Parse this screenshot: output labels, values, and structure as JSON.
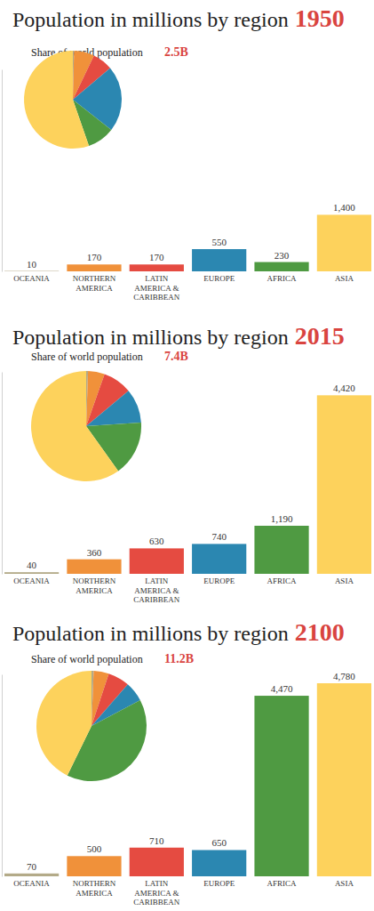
{
  "chart_data": [
    {
      "type": "bar",
      "title": "Population in millions by region",
      "subtitle": "1950",
      "categories": [
        "OCEANIA",
        "NORTHERN\nAMERICA",
        "LATIN\nAMERICA &\nCARIBBEAN",
        "EUROPE",
        "AFRICA",
        "ASIA"
      ],
      "values": [
        10,
        170,
        170,
        550,
        230,
        1400
      ],
      "value_labels": [
        "10",
        "170",
        "170",
        "550",
        "230",
        "1,400"
      ],
      "colors": [
        "#b3aa88",
        "#f0913a",
        "#e54b41",
        "#2b87b1",
        "#4f9a42",
        "#fdd25c"
      ],
      "ylim": [
        0,
        5000
      ],
      "yticks": [
        0
      ],
      "tick_labels": false,
      "data_labels": true
    },
    {
      "type": "pie",
      "title": "Share of world population",
      "annotations": [
        "2.5B"
      ],
      "values": [
        10,
        170,
        170,
        550,
        230,
        1400
      ],
      "colors": [
        "#b3aa88",
        "#f0913a",
        "#e54b41",
        "#2b87b1",
        "#4f9a42",
        "#fdd25c"
      ]
    },
    {
      "type": "bar",
      "title": "Population in millions by region",
      "subtitle": "2015",
      "categories": [
        "OCEANIA",
        "NORTHERN\nAMERICA",
        "LATIN\nAMERICA &\nCARIBBEAN",
        "EUROPE",
        "AFRICA",
        "ASIA"
      ],
      "values": [
        40,
        360,
        630,
        740,
        1190,
        4420
      ],
      "value_labels": [
        "40",
        "360",
        "630",
        "740",
        "1,190",
        "4,420"
      ],
      "colors": [
        "#b3aa88",
        "#f0913a",
        "#e54b41",
        "#2b87b1",
        "#4f9a42",
        "#fdd25c"
      ],
      "ylim": [
        0,
        5000
      ],
      "yticks": [
        0
      ],
      "tick_labels": false,
      "data_labels": true
    },
    {
      "type": "pie",
      "title": "Share of world population",
      "annotations": [
        "7.4B"
      ],
      "values": [
        40,
        360,
        630,
        740,
        1190,
        4420
      ],
      "colors": [
        "#b3aa88",
        "#f0913a",
        "#e54b41",
        "#2b87b1",
        "#4f9a42",
        "#fdd25c"
      ]
    },
    {
      "type": "bar",
      "title": "Population in millions by region",
      "subtitle": "2100",
      "categories": [
        "OCEANIA",
        "NORTHERN\nAMERICA",
        "LATIN\nAMERICA &\nCARIBBEAN",
        "EUROPE",
        "AFRICA",
        "ASIA"
      ],
      "values": [
        70,
        500,
        710,
        650,
        4470,
        4780
      ],
      "value_labels": [
        "70",
        "500",
        "710",
        "650",
        "4,470",
        "4,780"
      ],
      "colors": [
        "#b3aa88",
        "#f0913a",
        "#e54b41",
        "#2b87b1",
        "#4f9a42",
        "#fdd25c"
      ],
      "ylim": [
        0,
        5000
      ],
      "yticks": [
        0
      ],
      "tick_labels": false,
      "data_labels": true
    },
    {
      "type": "pie",
      "title": "Share of world population",
      "annotations": [
        "11.2B"
      ],
      "values": [
        70,
        500,
        710,
        650,
        4470,
        4780
      ],
      "colors": [
        "#b3aa88",
        "#f0913a",
        "#e54b41",
        "#2b87b1",
        "#4f9a42",
        "#fdd25c"
      ]
    }
  ]
}
